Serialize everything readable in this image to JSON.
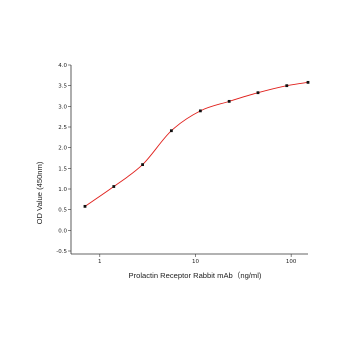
{
  "chart_data": {
    "type": "scatter",
    "title": "",
    "xlabel": "Prolactin Receptor Rabbit mAb（ng/ml)",
    "ylabel": "OD Value (450nm)",
    "x_scale": "log",
    "xlim": [
      0.5,
      150
    ],
    "ylim": [
      -0.5,
      4.0
    ],
    "x_ticks": [
      {
        "value": 1,
        "label": "1"
      },
      {
        "value": 10,
        "label": "10"
      },
      {
        "value": 100,
        "label": "100"
      }
    ],
    "y_ticks": [
      {
        "value": 4.0,
        "label": "4.0"
      },
      {
        "value": 3.5,
        "label": "3.5"
      },
      {
        "value": 3.0,
        "label": "3.0"
      },
      {
        "value": 2.5,
        "label": "2.5"
      },
      {
        "value": 2.0,
        "label": "2.0"
      },
      {
        "value": 1.5,
        "label": "1.5"
      },
      {
        "value": 1.0,
        "label": "1.0"
      },
      {
        "value": 0.5,
        "label": "0.5"
      },
      {
        "value": 0.0,
        "label": "0.0"
      },
      {
        "value": -0.5,
        "label": "-0.5"
      }
    ],
    "grid": false,
    "legend": "none",
    "series": [
      {
        "x": [
          0.7,
          1.4,
          2.8,
          5.6,
          11.25,
          22.5,
          45,
          90,
          150
        ],
        "y": [
          0.58,
          1.06,
          1.59,
          2.41,
          2.89,
          3.12,
          3.33,
          3.5,
          3.58
        ],
        "marker_color": "#111111",
        "fit_curve_color": "#e0201c"
      }
    ]
  }
}
